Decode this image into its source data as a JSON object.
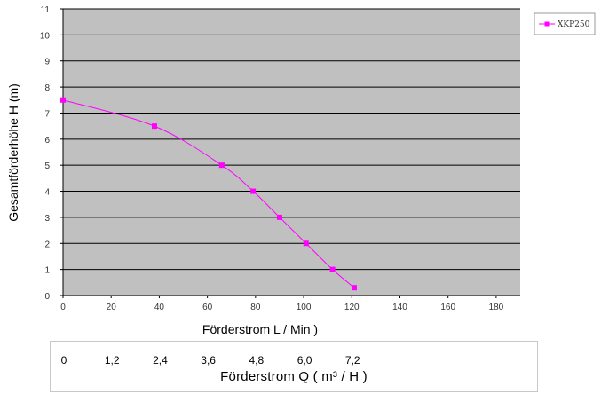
{
  "chart_data": {
    "type": "line",
    "x_ticks": [
      "0",
      "20",
      "40",
      "60",
      "80",
      "100",
      "120",
      "140",
      "160",
      "180"
    ],
    "y_ticks": [
      "0",
      "1",
      "2",
      "3",
      "4",
      "5",
      "6",
      "7",
      "8",
      "9",
      "10",
      "11"
    ],
    "xlim": [
      0,
      190
    ],
    "ylim": [
      0,
      11
    ],
    "xlabel": "Förderstrom L / Min )",
    "ylabel": "Gesamtförderhöhe  H (m)",
    "grid": "horizontal",
    "legend_position": "top-right",
    "plot_background": "#c0c0c0",
    "series": [
      {
        "name": "XKP250",
        "color": "#ff00ff",
        "x": [
          0,
          38,
          66,
          79,
          90,
          101,
          112,
          121
        ],
        "y": [
          7.5,
          6.5,
          5.0,
          4.0,
          3.0,
          2.0,
          1.0,
          0.3
        ]
      }
    ],
    "secondary_axis": {
      "label": "Förderstrom Q ( m³ / H )",
      "ticks": [
        {
          "text": "0",
          "x": 0
        },
        {
          "text": "1,2",
          "x": 20
        },
        {
          "text": "2,4",
          "x": 40
        },
        {
          "text": "3,6",
          "x": 60
        },
        {
          "text": "4,8",
          "x": 80
        },
        {
          "text": "6,0",
          "x": 100
        },
        {
          "text": "7,2",
          "x": 120
        }
      ]
    }
  }
}
